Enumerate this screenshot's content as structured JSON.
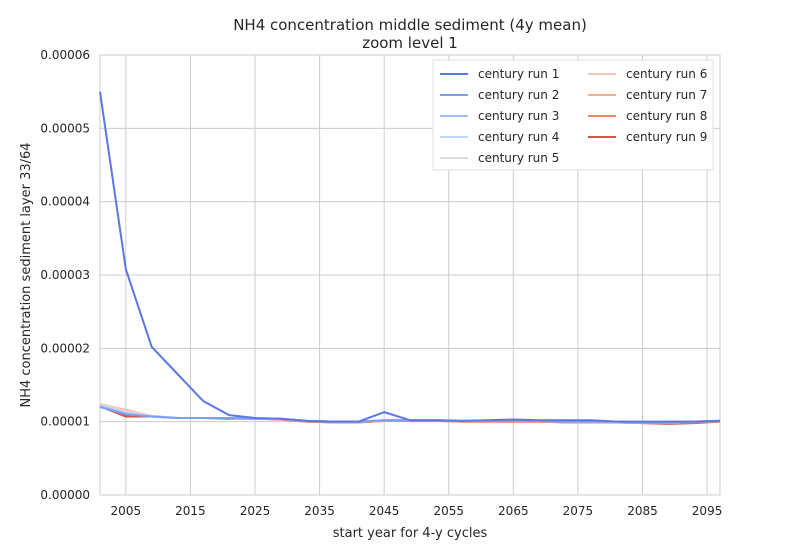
{
  "chart_data": {
    "type": "line",
    "title": "NH4 concentration middle sediment (4y mean)",
    "subtitle": "zoom level 1",
    "xlabel": "start year for 4-y cycles",
    "ylabel": "NH4 concentration sediment layer 33/64",
    "xlim": [
      2001,
      2097
    ],
    "ylim": [
      0,
      6e-05
    ],
    "xticks": [
      2005,
      2015,
      2025,
      2035,
      2045,
      2055,
      2065,
      2075,
      2085,
      2095
    ],
    "xtick_labels": [
      "2005",
      "2015",
      "2025",
      "2035",
      "2045",
      "2055",
      "2065",
      "2075",
      "2085",
      "2095"
    ],
    "yticks": [
      0,
      1e-05,
      2e-05,
      3e-05,
      4e-05,
      5e-05,
      6e-05
    ],
    "ytick_labels": [
      "0.00000",
      "0.00001",
      "0.00002",
      "0.00003",
      "0.00004",
      "0.00005",
      "0.00006"
    ],
    "grid": true,
    "legend": "top-right",
    "x": [
      2001,
      2005,
      2009,
      2013,
      2017,
      2021,
      2025,
      2029,
      2033,
      2037,
      2041,
      2045,
      2049,
      2053,
      2057,
      2061,
      2065,
      2069,
      2073,
      2077,
      2081,
      2085,
      2089,
      2093,
      2097
    ],
    "series": [
      {
        "name": "century run 1",
        "color": "#5a78e4",
        "values": [
          5.5e-05,
          3.08e-05,
          2.02e-05,
          1.65e-05,
          1.28e-05,
          1.09e-05,
          1.05e-05,
          1.04e-05,
          1.01e-05,
          1e-05,
          1e-05,
          1.13e-05,
          1.02e-05,
          1.02e-05,
          1.01e-05,
          1.02e-05,
          1.03e-05,
          1.02e-05,
          1.02e-05,
          1.02e-05,
          1e-05,
          1e-05,
          1e-05,
          1e-05,
          1.01e-05
        ]
      },
      {
        "name": "century run 2",
        "color": "#7b9ff9",
        "values": [
          1.2e-05,
          1.1e-05,
          1.07e-05,
          1.05e-05,
          1.05e-05,
          1.05e-05,
          1.04e-05,
          1.04e-05,
          1.01e-05,
          1e-05,
          1e-05,
          1.02e-05,
          1.02e-05,
          1.02e-05,
          1.01e-05,
          1.01e-05,
          1.01e-05,
          1.01e-05,
          1e-05,
          1e-05,
          1e-05,
          9.9e-06,
          9.9e-06,
          1e-05,
          1.01e-05
        ]
      },
      {
        "name": "century run 3",
        "color": "#9ebeff",
        "values": [
          1.21e-05,
          1.11e-05,
          1.07e-05,
          1.05e-05,
          1.05e-05,
          1.05e-05,
          1.04e-05,
          1.04e-05,
          1.01e-05,
          1e-05,
          1e-05,
          1.02e-05,
          1.02e-05,
          1.02e-05,
          1.01e-05,
          1.01e-05,
          1.01e-05,
          1.01e-05,
          1e-05,
          1e-05,
          1e-05,
          9.9e-06,
          9.9e-06,
          1e-05,
          1.01e-05
        ]
      },
      {
        "name": "century run 4",
        "color": "#c0d4f5",
        "values": [
          1.22e-05,
          1.12e-05,
          1.07e-05,
          1.05e-05,
          1.05e-05,
          1.05e-05,
          1.04e-05,
          1.04e-05,
          1.01e-05,
          1e-05,
          1e-05,
          1.02e-05,
          1.02e-05,
          1.02e-05,
          1.01e-05,
          1.01e-05,
          1.01e-05,
          1.01e-05,
          1e-05,
          1e-05,
          1e-05,
          9.9e-06,
          9.9e-06,
          1e-05,
          1.01e-05
        ]
      },
      {
        "name": "century run 5",
        "color": "#dddcdc",
        "values": [
          1.23e-05,
          1.13e-05,
          1.08e-05,
          1.05e-05,
          1.05e-05,
          1.05e-05,
          1.04e-05,
          1.04e-05,
          1.01e-05,
          1e-05,
          1e-05,
          1.02e-05,
          1.02e-05,
          1.02e-05,
          1.01e-05,
          1.01e-05,
          1.01e-05,
          1.01e-05,
          1e-05,
          1e-05,
          1e-05,
          9.9e-06,
          9.9e-06,
          1e-05,
          1.01e-05
        ]
      },
      {
        "name": "century run 6",
        "color": "#f2cbb7",
        "values": [
          1.24e-05,
          1.15e-05,
          1.08e-05,
          1.05e-05,
          1.05e-05,
          1.05e-05,
          1.04e-05,
          1.04e-05,
          1.01e-05,
          1e-05,
          1e-05,
          1.02e-05,
          1.02e-05,
          1.02e-05,
          1.01e-05,
          1.01e-05,
          1.01e-05,
          1.01e-05,
          1e-05,
          1e-05,
          1e-05,
          9.9e-06,
          9.9e-06,
          1e-05,
          1.01e-05
        ]
      },
      {
        "name": "century run 7",
        "color": "#f7ac8e",
        "values": [
          1.24e-05,
          1.16e-05,
          1.08e-05,
          1.05e-05,
          1.05e-05,
          1.05e-05,
          1.04e-05,
          1.04e-05,
          1.01e-05,
          1e-05,
          1e-05,
          1.02e-05,
          1.02e-05,
          1.02e-05,
          1.01e-05,
          1.01e-05,
          1.01e-05,
          1.01e-05,
          1e-05,
          1e-05,
          1e-05,
          9.9e-06,
          9.9e-06,
          1e-05,
          1.01e-05
        ]
      },
      {
        "name": "century run 8",
        "color": "#ee8468",
        "values": [
          1.22e-05,
          1.1e-05,
          1.07e-05,
          1.05e-05,
          1.05e-05,
          1.05e-05,
          1.04e-05,
          1.03e-05,
          1e-05,
          9.9e-06,
          9.9e-06,
          1.01e-05,
          1.01e-05,
          1.01e-05,
          1e-05,
          1e-05,
          1e-05,
          1e-05,
          9.9e-06,
          9.9e-06,
          9.9e-06,
          9.8e-06,
          9.8e-06,
          9.9e-06,
          1e-05
        ]
      },
      {
        "name": "century run 9",
        "color": "#d65244",
        "values": [
          1.21e-05,
          1.07e-05,
          1.07e-05,
          1.05e-05,
          1.05e-05,
          1.04e-05,
          1.04e-05,
          1.03e-05,
          1e-05,
          9.9e-06,
          9.9e-06,
          1.01e-05,
          1.01e-05,
          1.01e-05,
          1e-05,
          1e-05,
          1e-05,
          1e-05,
          9.9e-06,
          9.9e-06,
          9.9e-06,
          9.8e-06,
          9.7e-06,
          9.8e-06,
          1e-05
        ]
      }
    ]
  }
}
